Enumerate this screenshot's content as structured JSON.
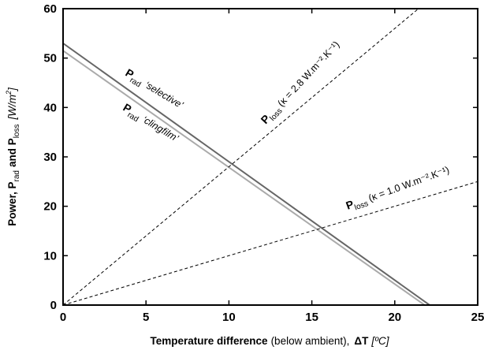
{
  "chart_data": {
    "type": "line",
    "xlabel": {
      "bold": "Temperature difference",
      "normal": "(below ambient),",
      "symbol": "ΔT",
      "unit": "[ºC]"
    },
    "ylabel": {
      "prefix": "Power, P",
      "rad_sub": "rad",
      "and": "and P",
      "loss_sub": "loss",
      "unit_open": "[W/m",
      "unit_sup": "2",
      "unit_close": "]"
    },
    "xlim": [
      0,
      25
    ],
    "ylim": [
      0,
      60
    ],
    "xticks": [
      "0",
      "5",
      "10",
      "15",
      "20",
      "25"
    ],
    "yticks": [
      "0",
      "10",
      "20",
      "30",
      "40",
      "50",
      "60"
    ],
    "series": [
      {
        "id": "rad-selective",
        "label_main": "P",
        "label_sub": "rad",
        "label_text": "‘selective’",
        "color": "#666666",
        "dash": "solid",
        "x": [
          0,
          22.1
        ],
        "y": [
          53,
          0
        ]
      },
      {
        "id": "rad-clingfilm",
        "label_main": "P",
        "label_sub": "rad",
        "label_text": "‘clingfilm’",
        "color": "#aaaaaa",
        "dash": "solid",
        "x": [
          0,
          21.8
        ],
        "y": [
          51.5,
          0
        ]
      },
      {
        "id": "loss-k28",
        "label_main": "P",
        "label_sub": "loss",
        "label_text": "(κ = 2.8 W.m⁻².K⁻¹)",
        "color": "#000000",
        "dash": "dashed",
        "x": [
          0,
          21.43
        ],
        "y": [
          0,
          60
        ]
      },
      {
        "id": "loss-k10",
        "label_main": "P",
        "label_sub": "loss",
        "label_text": "(κ = 1.0 W.m⁻².K⁻¹)",
        "color": "#000000",
        "dash": "dashed",
        "x": [
          0,
          25
        ],
        "y": [
          0,
          25
        ]
      }
    ]
  }
}
